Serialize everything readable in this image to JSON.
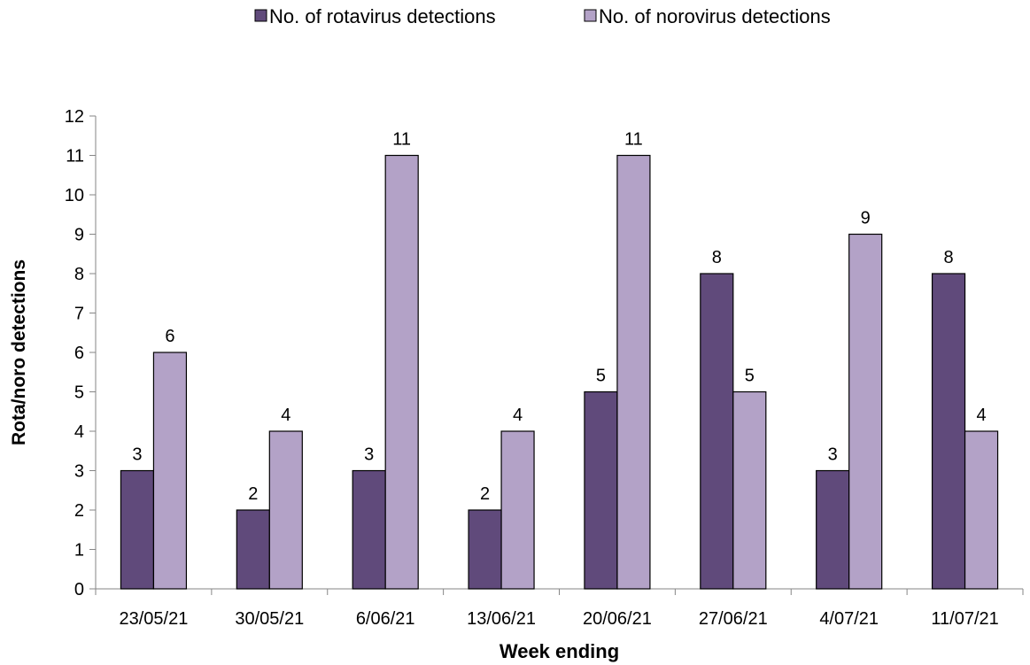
{
  "chart_data": {
    "type": "bar",
    "title": "",
    "xlabel": "Week ending",
    "ylabel": "Rota/noro detections",
    "ylim": [
      0,
      12
    ],
    "yticks": [
      0,
      1,
      2,
      3,
      4,
      5,
      6,
      7,
      8,
      9,
      10,
      11,
      12
    ],
    "grid": false,
    "legend_position": "top",
    "categories": [
      "23/05/21",
      "30/05/21",
      "6/06/21",
      "13/06/21",
      "20/06/21",
      "27/06/21",
      "4/07/21",
      "11/07/21"
    ],
    "series": [
      {
        "name": "No. of rotavirus detections",
        "color": "#604a7b",
        "values": [
          3,
          2,
          3,
          2,
          5,
          8,
          3,
          8
        ]
      },
      {
        "name": "No. of norovirus detections",
        "color": "#b3a2c7",
        "values": [
          6,
          4,
          11,
          4,
          11,
          5,
          9,
          4
        ]
      }
    ]
  }
}
